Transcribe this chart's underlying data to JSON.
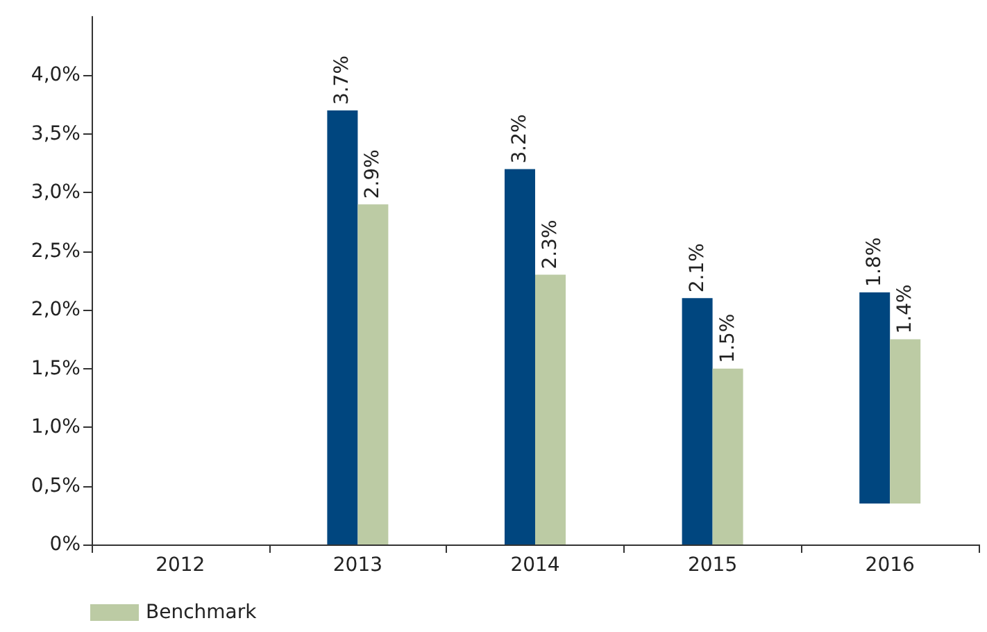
{
  "chart_data": {
    "type": "bar",
    "categories": [
      "2012",
      "2013",
      "2014",
      "2015",
      "2016"
    ],
    "series": [
      {
        "color": "#00467f",
        "values": [
          null,
          3.7,
          3.2,
          2.1,
          1.8
        ],
        "base": [
          null,
          0,
          0,
          0,
          0.35
        ],
        "value_labels": [
          null,
          "3.7%",
          "3.2%",
          "2.1%",
          "1.8%"
        ]
      },
      {
        "name": "Benchmark",
        "color": "#bccba4",
        "values": [
          null,
          2.9,
          2.3,
          1.5,
          1.4
        ],
        "base": [
          null,
          0,
          0,
          0,
          0.35
        ],
        "value_labels": [
          null,
          "2.9%",
          "2.3%",
          "1.5%",
          "1.4%"
        ]
      }
    ],
    "ylim": [
      0,
      4.5
    ],
    "yticks": [
      {
        "value": 0,
        "label": "0%"
      },
      {
        "value": 0.5,
        "label": "0,5%"
      },
      {
        "value": 1,
        "label": "1,0%"
      },
      {
        "value": 1.5,
        "label": "1,5%"
      },
      {
        "value": 2,
        "label": "2,0%"
      },
      {
        "value": 2.5,
        "label": "2,5%"
      },
      {
        "value": 3,
        "label": "3,0%"
      },
      {
        "value": 3.5,
        "label": "3,5%"
      },
      {
        "value": 4,
        "label": "4,0%"
      }
    ],
    "grid": false,
    "legend": "bottom left"
  }
}
